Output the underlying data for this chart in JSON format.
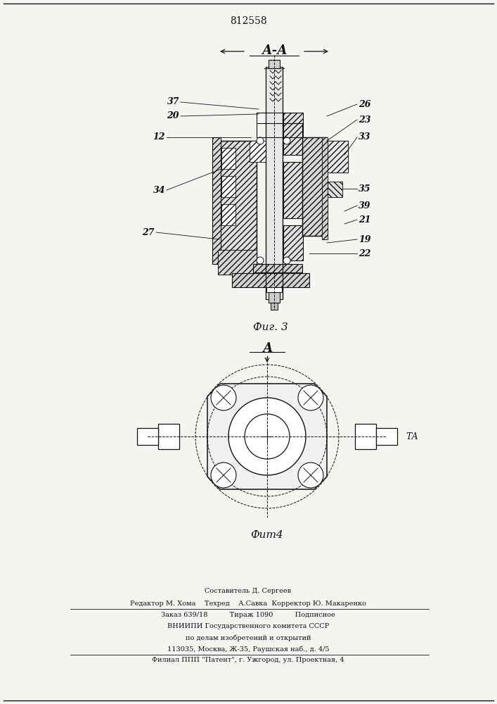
{
  "patent_number": "812558",
  "bg_color": "#f5f4f0",
  "line_color": "#111111",
  "fig3_caption": "Фиг. 3",
  "fig4_caption": "Фит4",
  "fig4_label": "А",
  "fig3_label": "А-А",
  "footer_lines": [
    "Составитель Д. Сергеев",
    "Редактор М. Хома    Техред    А.Савка  Корректор Ю. Макаренко",
    "Заказ 639/18          Тираж 1090          Подписное",
    "ВНИИПИ Государственного комитета СССР",
    "по делам изобретений и открытий",
    "113035, Москва, Ж-35, Раушская наб., д. 4/5",
    "Филиал ППП \"Патент\", г. Ужгород, ул. Проектная, 4"
  ]
}
